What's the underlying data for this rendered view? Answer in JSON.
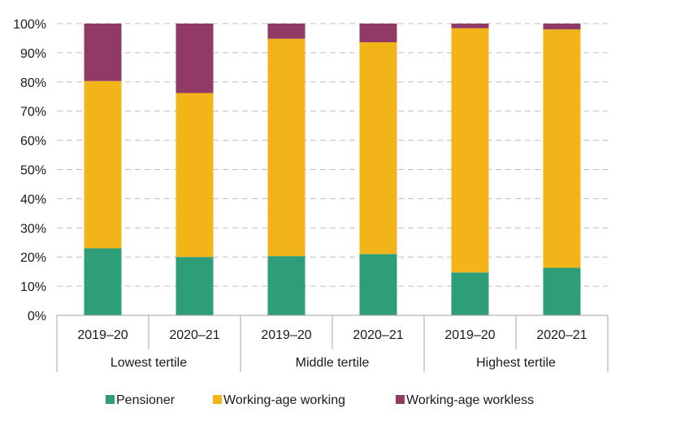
{
  "chart_data": {
    "type": "bar",
    "stacked": true,
    "title": "",
    "xlabel": "",
    "ylabel": "",
    "ylim": [
      0,
      100
    ],
    "y_ticks": [
      "0%",
      "10%",
      "20%",
      "30%",
      "40%",
      "50%",
      "60%",
      "70%",
      "80%",
      "90%",
      "100%"
    ],
    "grid": "horizontal dashed",
    "legend_position": "bottom",
    "categories": [
      "2019–20",
      "2020–21",
      "2019–20",
      "2020–21",
      "2019–20",
      "2020–21"
    ],
    "groups": [
      {
        "label": "Lowest tertile",
        "count": 2
      },
      {
        "label": "Middle tertile",
        "count": 2
      },
      {
        "label": "Highest tertile",
        "count": 2
      }
    ],
    "series": [
      {
        "name": "Pensioner",
        "color": "#2e9e78",
        "values": [
          23,
          20,
          20.3,
          21,
          14.7,
          16.3
        ]
      },
      {
        "name": "Working-age working",
        "color": "#f2b418",
        "values": [
          57.3,
          56.2,
          74.5,
          72.6,
          83.7,
          81.7
        ]
      },
      {
        "name": "Working-age workless",
        "color": "#923a66",
        "values": [
          19.7,
          23.8,
          5.2,
          6.4,
          1.6,
          2
        ]
      }
    ]
  }
}
